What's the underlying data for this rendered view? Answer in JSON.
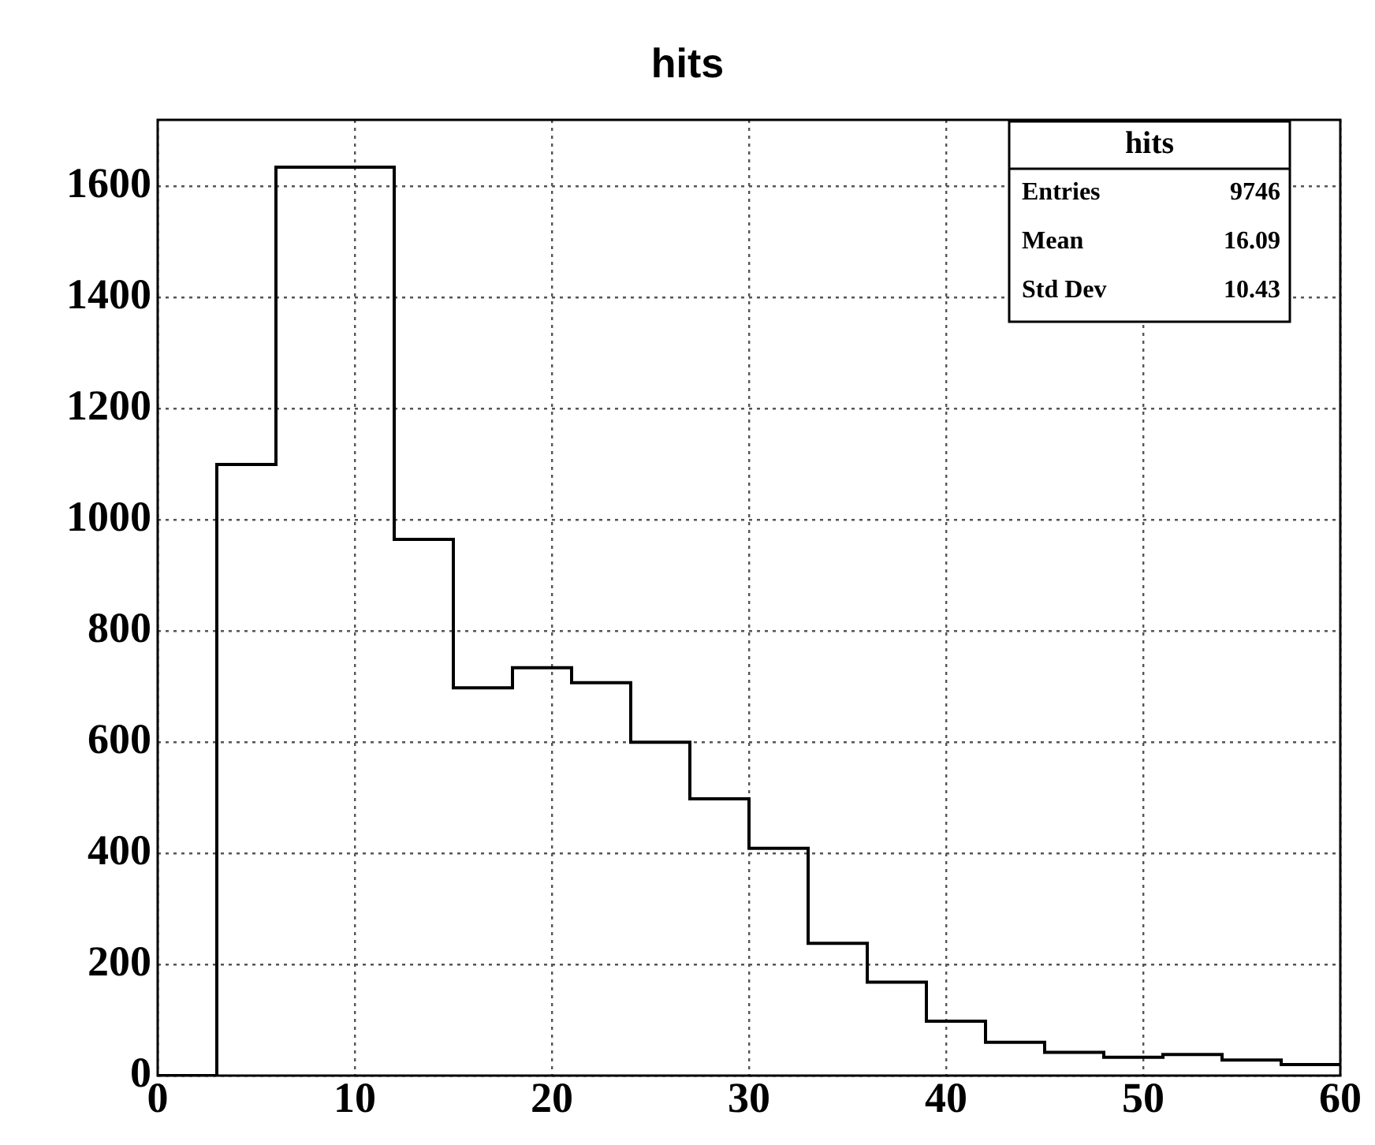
{
  "chart_data": {
    "type": "histogram",
    "title": "hits",
    "bins": [
      0,
      3,
      6,
      9,
      12,
      15,
      18,
      21,
      24,
      27,
      30,
      33,
      36,
      39,
      42,
      45,
      48,
      51,
      54,
      57,
      60
    ],
    "values": [
      0,
      1100,
      1635,
      1635,
      965,
      698,
      734,
      707,
      600,
      498,
      409,
      238,
      168,
      98,
      60,
      42,
      33,
      38,
      28,
      20
    ],
    "color": "#000000",
    "xlim": [
      0,
      60
    ],
    "xticks": [
      0,
      10,
      20,
      30,
      40,
      50,
      60
    ],
    "ylim": [
      0,
      1720
    ],
    "yticks": [
      0,
      200,
      400,
      600,
      800,
      1000,
      1200,
      1400,
      1600
    ],
    "grid": true,
    "legend": false,
    "annotations": [
      "hits",
      "Entries 9746",
      "Mean 16.09",
      "Std Dev 10.43"
    ]
  }
}
